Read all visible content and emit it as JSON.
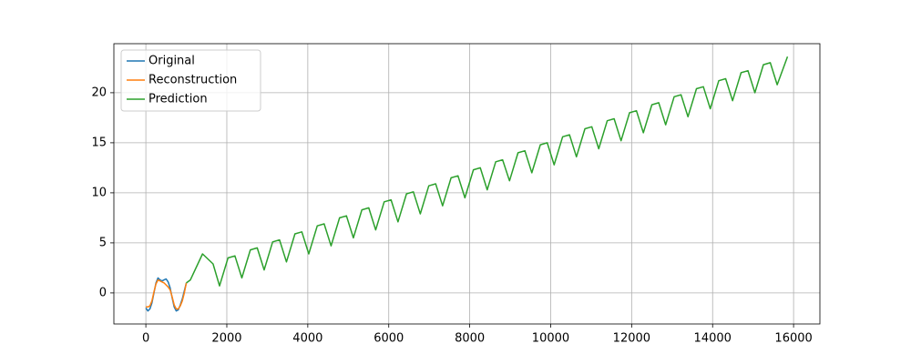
{
  "chart_data": {
    "type": "line",
    "xlim": [
      -790,
      16650
    ],
    "ylim": [
      -3.1,
      24.9
    ],
    "xticks": [
      0,
      2000,
      4000,
      6000,
      8000,
      10000,
      12000,
      14000,
      16000
    ],
    "yticks": [
      0,
      5,
      10,
      15,
      20
    ],
    "grid": true,
    "legend": "upper left",
    "series": [
      {
        "name": "Original",
        "color": "#1f77b4",
        "x": [
          0,
          50,
          100,
          150,
          200,
          250,
          300,
          350,
          400,
          450,
          500,
          550,
          600,
          650,
          700,
          750,
          800,
          850,
          900,
          950,
          1000
        ],
        "values": [
          -1.5,
          -1.8,
          -1.6,
          -1.0,
          0.0,
          1.0,
          1.5,
          1.3,
          1.2,
          1.3,
          1.4,
          1.1,
          0.5,
          -0.5,
          -1.4,
          -1.8,
          -1.7,
          -1.2,
          -0.6,
          0.2,
          1.0
        ]
      },
      {
        "name": "Reconstruction",
        "color": "#ff7f0e",
        "x": [
          0,
          50,
          100,
          150,
          200,
          250,
          300,
          350,
          400,
          450,
          500,
          550,
          600,
          650,
          700,
          750,
          800,
          850,
          900,
          950,
          1000
        ],
        "values": [
          -1.4,
          -1.4,
          -1.3,
          -0.8,
          0.1,
          0.9,
          1.3,
          1.2,
          1.1,
          1.0,
          0.8,
          0.6,
          0.3,
          -0.4,
          -1.2,
          -1.6,
          -1.6,
          -1.3,
          -0.8,
          0.0,
          1.0
        ]
      },
      {
        "name": "Prediction",
        "color": "#2ca02c",
        "x": [
          1000,
          1100,
          1400,
          1660,
          1820,
          2030,
          2200,
          2371,
          2581,
          2751,
          2922,
          3132,
          3302,
          3473,
          3683,
          3853,
          4024,
          4234,
          4404,
          4575,
          4785,
          4955,
          5126,
          5336,
          5506,
          5677,
          5887,
          6057,
          6228,
          6438,
          6608,
          6779,
          6989,
          7159,
          7330,
          7540,
          7710,
          7881,
          8091,
          8261,
          8432,
          8642,
          8812,
          8983,
          9193,
          9363,
          9534,
          9744,
          9914,
          10085,
          10295,
          10465,
          10636,
          10846,
          11016,
          11187,
          11397,
          11567,
          11738,
          11948,
          12118,
          12289,
          12499,
          12669,
          12840,
          13050,
          13220,
          13391,
          13601,
          13771,
          13942,
          14152,
          14322,
          14493,
          14703,
          14873,
          15044,
          15254,
          15424,
          15595,
          15850
        ],
        "values": [
          1.0,
          1.3,
          3.9,
          2.9,
          0.7,
          3.5,
          3.7,
          1.5,
          4.3,
          4.5,
          2.3,
          5.1,
          5.3,
          3.1,
          5.9,
          6.1,
          3.9,
          6.7,
          6.9,
          4.7,
          7.5,
          7.7,
          5.5,
          8.3,
          8.5,
          6.3,
          9.1,
          9.3,
          7.1,
          9.9,
          10.1,
          7.9,
          10.7,
          10.9,
          8.7,
          11.5,
          11.7,
          9.5,
          12.3,
          12.5,
          10.3,
          13.1,
          13.3,
          11.2,
          14.0,
          14.2,
          12.0,
          14.8,
          15.0,
          12.8,
          15.6,
          15.8,
          13.6,
          16.4,
          16.6,
          14.4,
          17.2,
          17.4,
          15.2,
          18.0,
          18.2,
          16.0,
          18.8,
          19.0,
          16.8,
          19.6,
          19.8,
          17.6,
          20.4,
          20.6,
          18.4,
          21.2,
          21.4,
          19.2,
          22.0,
          22.2,
          20.0,
          22.8,
          23.0,
          20.8,
          23.6
        ]
      }
    ]
  }
}
